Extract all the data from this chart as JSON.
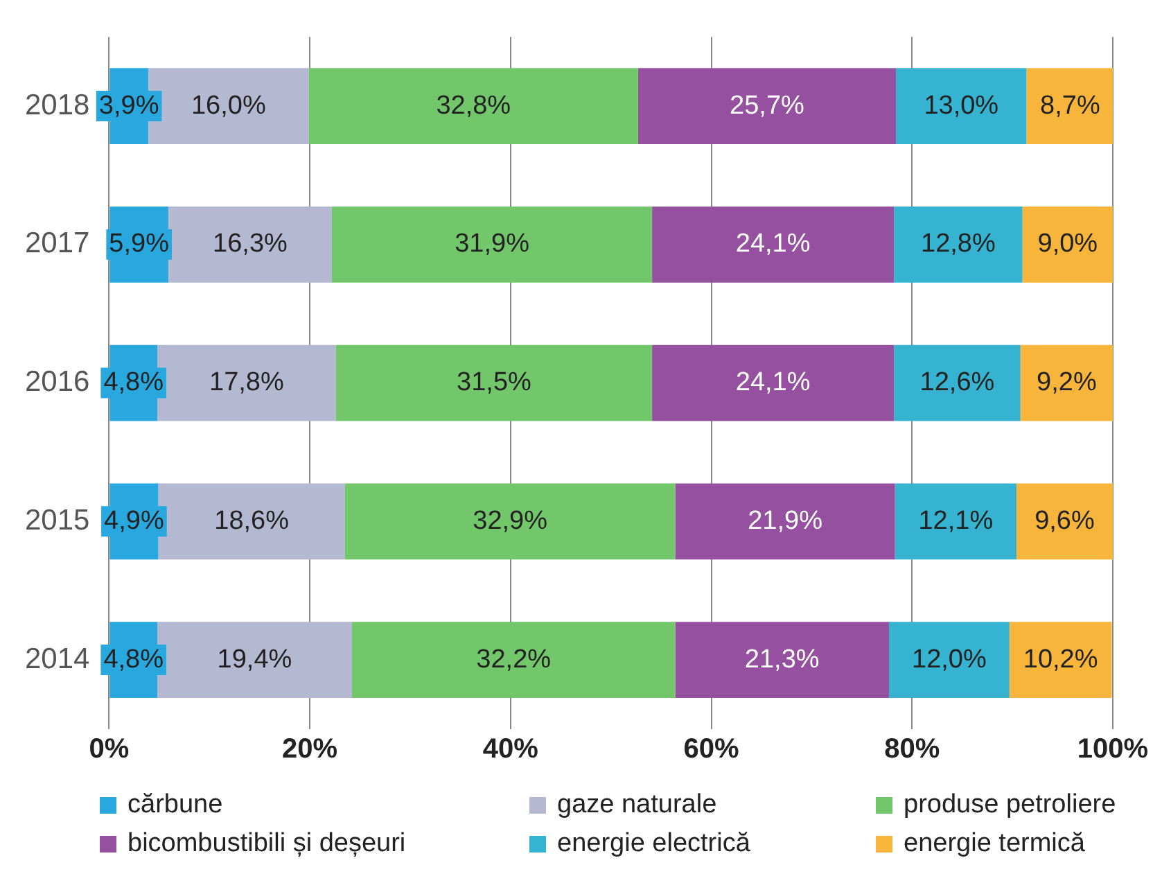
{
  "chart_data": {
    "type": "bar",
    "orientation": "horizontal",
    "stacked": true,
    "categories": [
      "2018",
      "2017",
      "2016",
      "2015",
      "2014"
    ],
    "series": [
      {
        "name": "cărbune",
        "color": "#29a8e0",
        "values": [
          3.9,
          5.9,
          4.8,
          4.9,
          4.8
        ],
        "value_labels": [
          "3,9%",
          "5,9%",
          "4,8%",
          "4,9%",
          "4,8%"
        ]
      },
      {
        "name": "gaze naturale",
        "color": "#b4b8d0",
        "values": [
          16.0,
          16.3,
          17.8,
          18.6,
          19.4
        ],
        "value_labels": [
          "16,0%",
          "16,3%",
          "17,8%",
          "18,6%",
          "19,4%"
        ]
      },
      {
        "name": "produse petroliere",
        "color": "#72c76a",
        "values": [
          32.8,
          31.9,
          31.5,
          32.9,
          32.2
        ],
        "value_labels": [
          "32,8%",
          "31,9%",
          "31,5%",
          "32,9%",
          "32,2%"
        ]
      },
      {
        "name": "bicombustibili și deșeuri",
        "color": "#9650a0",
        "values": [
          25.7,
          24.1,
          24.1,
          21.9,
          21.3
        ],
        "value_labels": [
          "25,7%",
          "24,1%",
          "24,1%",
          "21,9%",
          "21,3%"
        ]
      },
      {
        "name": "energie electrică",
        "color": "#35b3d0",
        "values": [
          13.0,
          12.8,
          12.6,
          12.1,
          12.0
        ],
        "value_labels": [
          "13,0%",
          "12,8%",
          "12,6%",
          "12,1%",
          "12,0%"
        ]
      },
      {
        "name": "energie termică",
        "color": "#f7b53b",
        "values": [
          8.7,
          9.0,
          9.2,
          9.6,
          10.2
        ],
        "value_labels": [
          "8,7%",
          "9,0%",
          "9,2%",
          "9,6%",
          "10,2%"
        ]
      }
    ],
    "xlim": [
      0,
      100
    ],
    "xticks": [
      {
        "value": 0,
        "label": "0%"
      },
      {
        "value": 20,
        "label": "20%"
      },
      {
        "value": 40,
        "label": "40%"
      },
      {
        "value": 60,
        "label": "60%"
      },
      {
        "value": 80,
        "label": "80%"
      },
      {
        "value": 100,
        "label": "100%"
      }
    ],
    "grid": "x",
    "legend": "bottom"
  }
}
